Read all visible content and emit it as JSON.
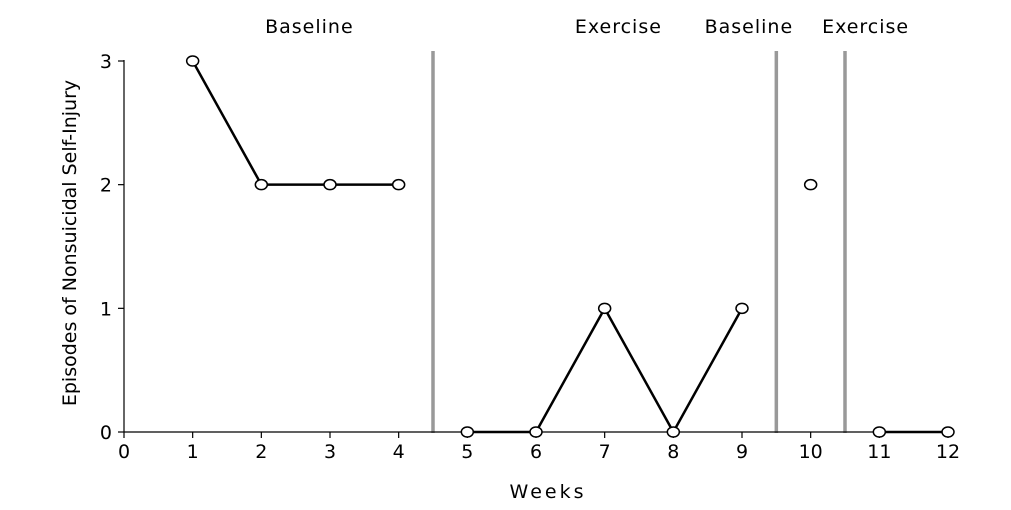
{
  "chart_data": {
    "type": "line",
    "title": "",
    "xlabel": "Weeks",
    "ylabel": "Episodes of Nonsuicidal Self-Injury",
    "xlim": [
      0,
      12
    ],
    "ylim": [
      0,
      3
    ],
    "x_ticks": [
      0,
      1,
      2,
      3,
      4,
      5,
      6,
      7,
      8,
      9,
      10,
      11,
      12
    ],
    "y_ticks": [
      0,
      1,
      2,
      3
    ],
    "grid": false,
    "legend": "none",
    "phases": [
      {
        "label": "Baseline",
        "start": 0.5,
        "end": 4.5
      },
      {
        "label": "Exercise",
        "start": 4.5,
        "end": 9.5
      },
      {
        "label": "Baseline",
        "start": 9.5,
        "end": 10.5
      },
      {
        "label": "Exercise",
        "start": 10.5,
        "end": 12.5
      }
    ],
    "phase_change_lines": [
      4.5,
      9.5,
      10.5
    ],
    "segments": [
      {
        "x": [
          1,
          2,
          3,
          4
        ],
        "y": [
          3,
          2,
          2,
          2
        ]
      },
      {
        "x": [
          5,
          6,
          7,
          8,
          9
        ],
        "y": [
          0,
          0,
          1,
          0,
          1
        ]
      },
      {
        "x": [
          10
        ],
        "y": [
          2
        ]
      },
      {
        "x": [
          11,
          12
        ],
        "y": [
          0,
          0
        ]
      }
    ],
    "colors": {
      "line": "#000000",
      "marker_fill": "#ffffff",
      "phase_line": "#999999"
    }
  }
}
